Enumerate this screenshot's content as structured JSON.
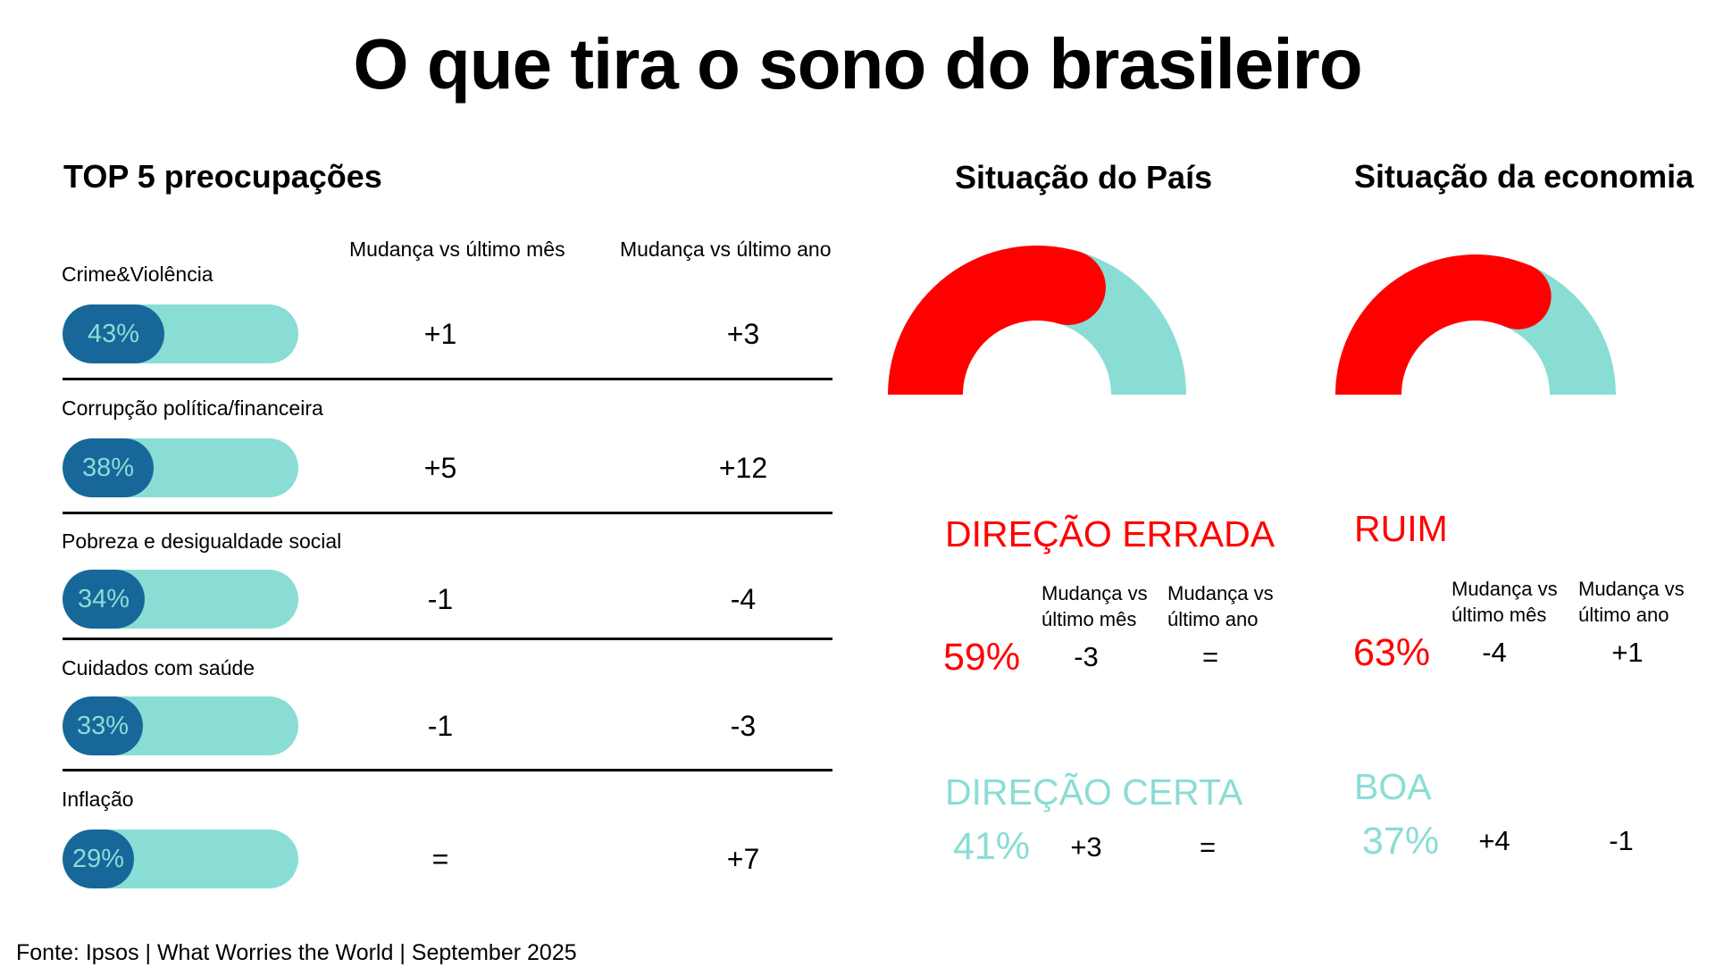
{
  "title": "O que tira o sono do brasileiro",
  "colors": {
    "bad": "#ff0000",
    "good": "#89ddd5",
    "bar_fill": "#17679a",
    "bar_track": "#89ddd5"
  },
  "top5": {
    "title": "TOP 5 preocupações",
    "col_month": "Mudança vs último mês",
    "col_year": "Mudança vs último ano"
  },
  "chart_data": [
    {
      "type": "bar",
      "title": "TOP 5 preocupações",
      "categories": [
        "Crime&Violência",
        "Corrupção política/financeira",
        "Pobreza e desigualdade social",
        "Cuidados com saúde",
        "Inflação"
      ],
      "values": [
        43,
        38,
        34,
        33,
        29
      ],
      "value_labels": [
        "43%",
        "38%",
        "34%",
        "33%",
        "29%"
      ],
      "change_month": [
        "+1",
        "+5",
        "-1",
        "-1",
        "="
      ],
      "change_year": [
        "+3",
        "+12",
        "-4",
        "-3",
        "+7"
      ],
      "ylim": [
        0,
        100
      ]
    },
    {
      "type": "pie",
      "title": "Situação do País",
      "shape": "half-donut",
      "categories": [
        "DIREÇÃO ERRADA",
        "DIREÇÃO CERTA"
      ],
      "values": [
        59,
        41
      ],
      "value_labels": [
        "59%",
        "41%"
      ],
      "col_month": "Mudança vs último mês",
      "col_year": "Mudança vs último ano",
      "change_month": [
        "-3",
        "+3"
      ],
      "change_year": [
        "=",
        "="
      ]
    },
    {
      "type": "pie",
      "title": "Situação da economia",
      "shape": "half-donut",
      "categories": [
        "RUIM",
        "BOA"
      ],
      "values": [
        63,
        37
      ],
      "value_labels": [
        "63%",
        "37%"
      ],
      "col_month": "Mudança vs último mês",
      "col_year": "Mudança vs último ano",
      "change_month": [
        "-4",
        "+4"
      ],
      "change_year": [
        "+1",
        "-1"
      ]
    }
  ],
  "source": "Fonte: Ipsos | What Worries the World | September 2025"
}
